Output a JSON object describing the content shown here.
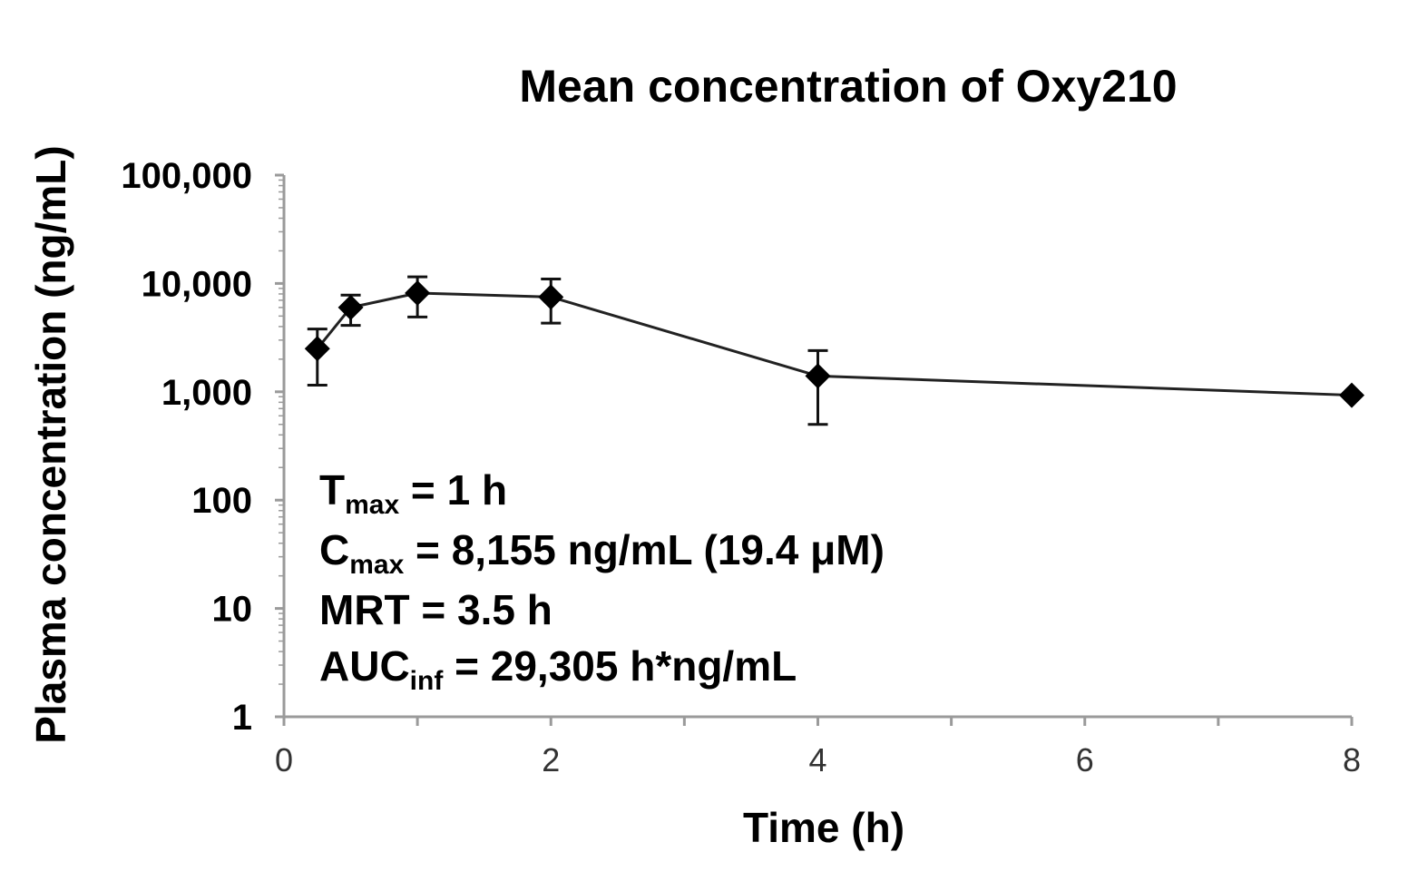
{
  "chart_data": {
    "type": "line",
    "title": "Mean concentration of Oxy210",
    "xlabel": "Time (h)",
    "ylabel": "Plasma concentration (ng/mL)",
    "y_scale": "log",
    "xlim": [
      0,
      8
    ],
    "ylim": [
      1,
      100000
    ],
    "x_ticks": [
      "0",
      "2",
      "4",
      "6",
      "8"
    ],
    "y_ticks": [
      "1",
      "10",
      "100",
      "1,000",
      "10,000",
      "100,000"
    ],
    "grid": false,
    "legend": "none",
    "line_color": "#222222",
    "marker": "diamond",
    "series": [
      {
        "x": [
          0.25,
          0.5,
          1,
          2,
          4,
          8
        ],
        "y": [
          2500,
          6000,
          8155,
          7500,
          1400,
          930
        ],
        "err_low": [
          1150,
          4100,
          4900,
          4300,
          500,
          null
        ],
        "err_high": [
          3800,
          7800,
          11500,
          11000,
          2400,
          null
        ]
      }
    ],
    "annotations": [
      {
        "main": "T",
        "sub": "max",
        "rest": " = 1 h"
      },
      {
        "main": "C",
        "sub": "max",
        "rest": " = 8,155 ng/mL (19.4 μM)"
      },
      {
        "main": "MRT = 3.5 h",
        "sub": "",
        "rest": ""
      },
      {
        "main": "AUC",
        "sub": "inf",
        "rest": " = 29,305 h*ng/mL"
      }
    ]
  }
}
